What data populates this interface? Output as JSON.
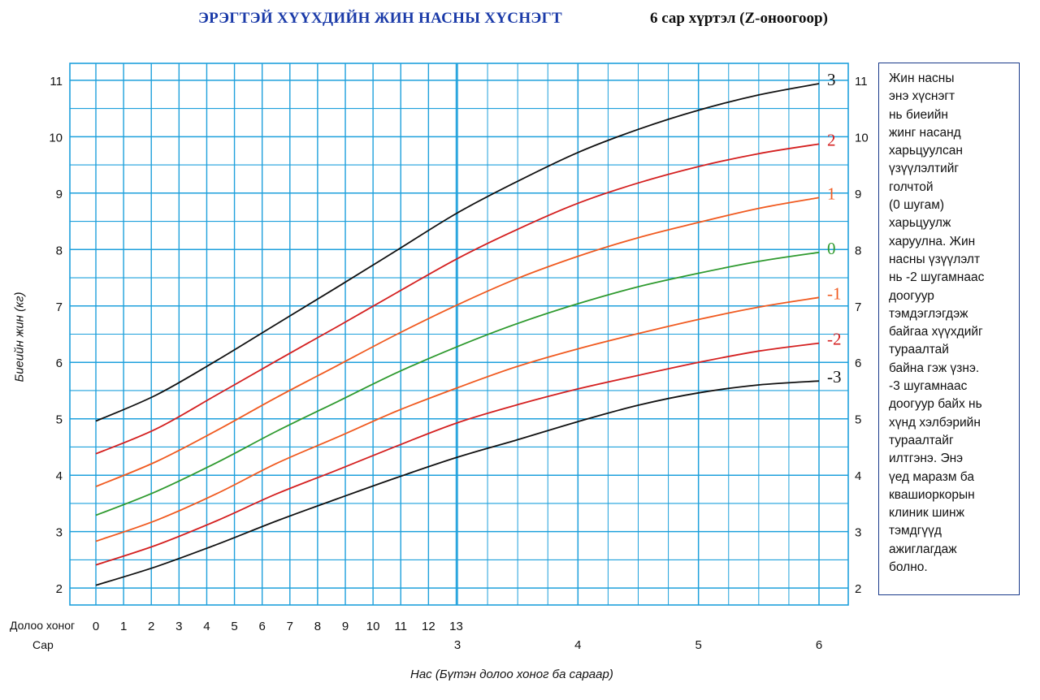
{
  "title": "ЭРЭГТЭЙ ХҮҮХДИЙН ЖИН НАСНЫ ХҮСНЭГТ",
  "subtitle": "6 сар хүртэл (Z-оноогоор)",
  "info_text": "Жин насны\nэнэ хүснэгт\nнь биеийн\nжинг насанд\nхарьцуулсан\nүзүүлэлтийг\nголчтой\n(0 шугам)\nхарьцуулж\nхаруулна. Жин\nнасны үзүүлэлт\nнь -2 шугамнаас\nдоогуур\nтэмдэглэгдэж\nбайгаа хүүхдийг\nтураалтай\nбайна гэж үзнэ.\n-3 шугамнаас\nдоогуур байх нь\nхүнд хэлбэрийн\nтураалтайг\nилтгэнэ. Энэ\nүед маразм ба\nквашиоркорын\nклиник шинж\nтэмдгүүд\nажиглагдаж\nболно.",
  "colors": {
    "grid": "#1ea0dc",
    "title": "#1a3aa8",
    "black": "#111111",
    "red": "#d42020",
    "orange": "#f05a20",
    "green": "#2f9a2f"
  },
  "chart_data": {
    "type": "line",
    "title": "ЭРЭГТЭЙ ХҮҮХДИЙН ЖИН НАСНЫ ХҮСНЭГТ",
    "subtitle": "6 сар хүртэл (Z-оноогоор)",
    "xlabel": "Нас (Бүтэн долоо хоног ба сараар)",
    "ylabel": "Биеийн жин (кг)",
    "x_unit": "months",
    "xlim": [
      0,
      6.15
    ],
    "ylim": [
      1.7,
      11.3
    ],
    "y_ticks": [
      2,
      3,
      4,
      5,
      6,
      7,
      8,
      9,
      10,
      11
    ],
    "week_axis": {
      "label": "Долоо хоног",
      "ticks": [
        "0",
        "1",
        "2",
        "3",
        "4",
        "5",
        "6",
        "7",
        "8",
        "9",
        "10",
        "11",
        "12",
        "13"
      ]
    },
    "month_axis": {
      "label": "Сар",
      "ticks": [
        "3",
        "4",
        "5",
        "6"
      ]
    },
    "grid": true,
    "x": [
      0,
      0.5,
      1,
      1.5,
      2,
      2.5,
      3,
      3.5,
      4,
      4.5,
      5,
      5.5,
      6
    ],
    "series": [
      {
        "name": "3",
        "color": "black",
        "values": [
          4.96,
          5.42,
          6.03,
          6.68,
          7.33,
          7.99,
          8.65,
          9.21,
          9.72,
          10.13,
          10.47,
          10.74,
          10.94
        ]
      },
      {
        "name": "2",
        "color": "red",
        "values": [
          4.38,
          4.82,
          5.42,
          6.03,
          6.63,
          7.24,
          7.84,
          8.36,
          8.82,
          9.18,
          9.47,
          9.7,
          9.87
        ]
      },
      {
        "name": "1",
        "color": "orange",
        "values": [
          3.8,
          4.24,
          4.79,
          5.38,
          5.94,
          6.5,
          7.02,
          7.49,
          7.88,
          8.21,
          8.48,
          8.73,
          8.92
        ]
      },
      {
        "name": "0",
        "color": "green",
        "values": [
          3.29,
          3.71,
          4.22,
          4.78,
          5.3,
          5.82,
          6.28,
          6.69,
          7.04,
          7.34,
          7.58,
          7.79,
          7.95
        ]
      },
      {
        "name": "-1",
        "color": "orange",
        "values": [
          2.83,
          3.2,
          3.67,
          4.21,
          4.67,
          5.14,
          5.55,
          5.93,
          6.24,
          6.51,
          6.76,
          6.98,
          7.15
        ]
      },
      {
        "name": "-2",
        "color": "red",
        "values": [
          2.41,
          2.76,
          3.19,
          3.67,
          4.09,
          4.52,
          4.93,
          5.25,
          5.53,
          5.77,
          6.0,
          6.2,
          6.34
        ]
      },
      {
        "name": "-3",
        "color": "black",
        "values": [
          2.05,
          2.38,
          2.77,
          3.19,
          3.58,
          3.96,
          4.32,
          4.63,
          4.95,
          5.24,
          5.46,
          5.6,
          5.67
        ]
      }
    ]
  },
  "axis_labels": {
    "week": "Долоо хоног",
    "month": "Сар"
  }
}
